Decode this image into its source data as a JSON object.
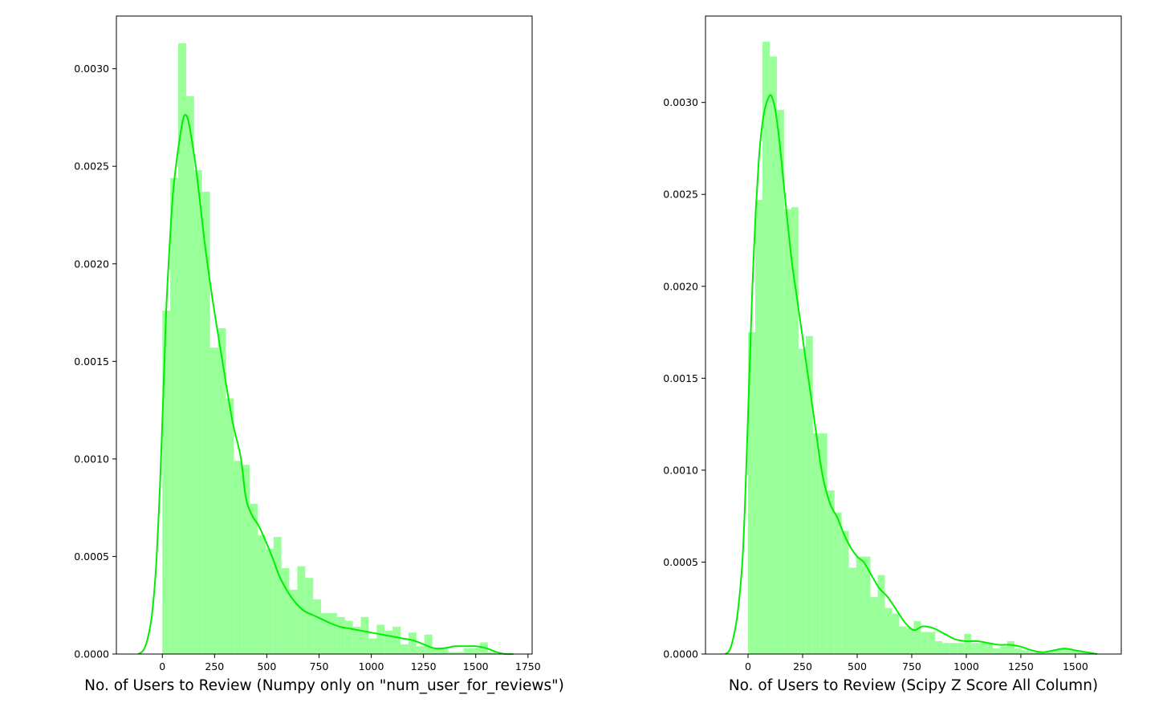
{
  "colors": {
    "bar_fill": "#99ff99",
    "kde_line": "#00ee00",
    "frame": "#000000",
    "background": "#ffffff"
  },
  "chart_data": [
    {
      "type": "bar",
      "subtype": "histogram-with-kde",
      "xlabel": "No. of Users to Review (Numpy only on \"num_user_for_reviews\")",
      "ylabel": "",
      "xlim": [
        -220,
        1770
      ],
      "ylim": [
        0,
        0.00327
      ],
      "xticks": [
        0,
        250,
        500,
        750,
        1000,
        1250,
        1500,
        1750
      ],
      "xtick_labels": [
        "0",
        "250",
        "500",
        "750",
        "1000",
        "1250",
        "1500",
        "1750"
      ],
      "yticks": [
        0,
        0.0005,
        0.001,
        0.0015,
        0.002,
        0.0025,
        0.003
      ],
      "ytick_labels": [
        "0.0000",
        "0.0005",
        "0.0010",
        "0.0015",
        "0.0020",
        "0.0025",
        "0.0030"
      ],
      "grid": false,
      "bin_start": 0,
      "bin_width": 38,
      "densities": [
        0.00176,
        0.00244,
        0.00313,
        0.00286,
        0.00248,
        0.00237,
        0.00157,
        0.00167,
        0.00131,
        0.00099,
        0.00097,
        0.00077,
        0.00061,
        0.00054,
        0.0006,
        0.00044,
        0.00033,
        0.00045,
        0.00039,
        0.00028,
        0.00021,
        0.00021,
        0.00019,
        0.00017,
        0.00014,
        0.00019,
        8e-05,
        0.00015,
        0.00012,
        0.00014,
        5e-05,
        0.00011,
        4e-05,
        0.0001,
        3e-05,
        3e-05,
        1e-05,
        1e-05,
        3e-05,
        3e-05,
        6e-05,
        1e-05
      ],
      "kde": {
        "x": [
          -115,
          -90,
          -70,
          -50,
          -30,
          -10,
          0,
          10,
          20,
          35,
          50,
          65,
          80,
          95,
          105,
          115,
          125,
          140,
          160,
          180,
          200,
          225,
          250,
          280,
          310,
          340,
          375,
          400,
          430,
          460,
          490,
          525,
          560,
          600,
          640,
          680,
          720,
          760,
          800,
          850,
          900,
          950,
          1000,
          1050,
          1100,
          1150,
          1200,
          1250,
          1300,
          1350,
          1400,
          1450,
          1500,
          1550,
          1600,
          1640,
          1680
        ],
        "y": [
          0.0,
          2e-05,
          8e-05,
          0.0002,
          0.00045,
          0.0009,
          0.0012,
          0.0015,
          0.0018,
          0.0021,
          0.00235,
          0.0025,
          0.00262,
          0.00272,
          0.00276,
          0.00276,
          0.00273,
          0.00264,
          0.0025,
          0.00232,
          0.00213,
          0.00193,
          0.00175,
          0.00155,
          0.00135,
          0.00117,
          0.00101,
          0.0008,
          0.00071,
          0.00066,
          0.00059,
          0.0005,
          0.0004,
          0.00032,
          0.00026,
          0.00022,
          0.0002,
          0.00018,
          0.00016,
          0.00014,
          0.00013,
          0.00012,
          0.00011,
          0.0001,
          9e-05,
          8e-05,
          7e-05,
          5e-05,
          3e-05,
          3e-05,
          4e-05,
          4e-05,
          4e-05,
          3e-05,
          1e-05,
          0.0,
          0.0
        ]
      }
    },
    {
      "type": "bar",
      "subtype": "histogram-with-kde",
      "xlabel": "No. of Users to Review (Scipy Z Score All Column)",
      "ylabel": "",
      "xlim": [
        -195,
        1710
      ],
      "ylim": [
        0,
        0.00347
      ],
      "xticks": [
        0,
        250,
        500,
        750,
        1000,
        1250,
        1500
      ],
      "xtick_labels": [
        "0",
        "250",
        "500",
        "750",
        "1000",
        "1250",
        "1500"
      ],
      "yticks": [
        0,
        0.0005,
        0.001,
        0.0015,
        0.002,
        0.0025,
        0.003
      ],
      "ytick_labels": [
        "0.0000",
        "0.0005",
        "0.0010",
        "0.0015",
        "0.0020",
        "0.0025",
        "0.0030"
      ],
      "grid": false,
      "bin_start": 0,
      "bin_width": 33,
      "densities": [
        0.00175,
        0.00247,
        0.00333,
        0.00325,
        0.00296,
        0.00242,
        0.00243,
        0.00166,
        0.00173,
        0.0012,
        0.0012,
        0.00089,
        0.00077,
        0.00067,
        0.00047,
        0.00053,
        0.00053,
        0.00031,
        0.00043,
        0.00025,
        0.00022,
        0.00015,
        0.00014,
        0.00018,
        0.00012,
        0.00012,
        7e-05,
        6e-05,
        6e-05,
        6e-05,
        0.00011,
        6e-05,
        6e-05,
        6e-05,
        3e-05,
        4e-05,
        7e-05,
        3e-05,
        2e-05,
        1e-05,
        1e-05,
        1e-05,
        2e-05,
        3e-05,
        3e-05,
        2e-05,
        1e-05,
        1e-05
      ],
      "kde": {
        "x": [
          -105,
          -85,
          -65,
          -45,
          -25,
          -10,
          0,
          10,
          20,
          35,
          50,
          65,
          80,
          95,
          105,
          115,
          125,
          140,
          160,
          180,
          200,
          225,
          250,
          280,
          310,
          340,
          375,
          410,
          440,
          470,
          500,
          530,
          560,
          600,
          640,
          680,
          720,
          760,
          800,
          850,
          900,
          950,
          1000,
          1050,
          1100,
          1150,
          1200,
          1250,
          1300,
          1350,
          1400,
          1450,
          1500,
          1550,
          1600
        ],
        "y": [
          0.0,
          2e-05,
          0.0001,
          0.00025,
          0.00052,
          0.00095,
          0.0013,
          0.00165,
          0.002,
          0.0024,
          0.0027,
          0.00288,
          0.00298,
          0.00303,
          0.00304,
          0.00301,
          0.00296,
          0.00283,
          0.0026,
          0.00236,
          0.00214,
          0.00193,
          0.00172,
          0.00147,
          0.00122,
          0.00098,
          0.00082,
          0.00074,
          0.00065,
          0.00058,
          0.00053,
          0.0005,
          0.00044,
          0.00036,
          0.00031,
          0.00024,
          0.00017,
          0.00013,
          0.00015,
          0.00014,
          0.00011,
          8e-05,
          7e-05,
          7e-05,
          6e-05,
          5e-05,
          5e-05,
          4e-05,
          2e-05,
          1e-05,
          2e-05,
          3e-05,
          2e-05,
          1e-05,
          0.0
        ]
      }
    }
  ]
}
